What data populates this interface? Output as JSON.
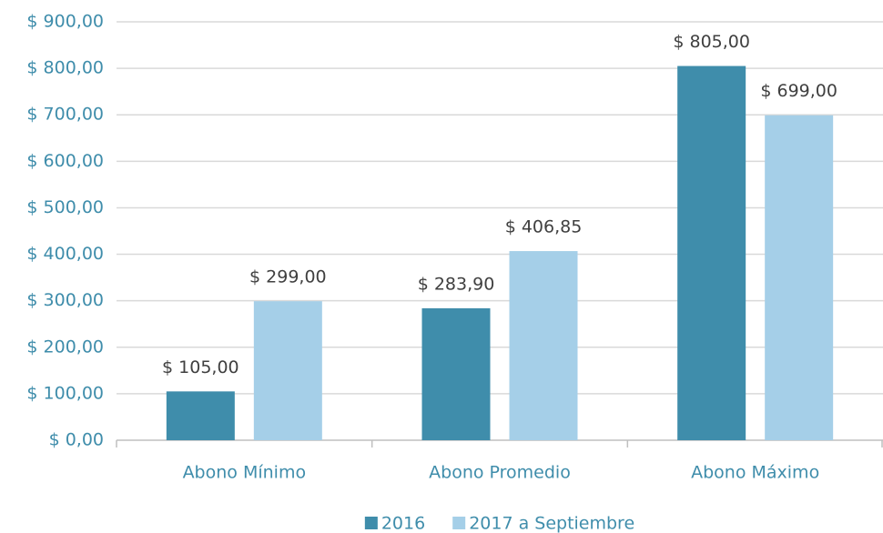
{
  "chart_data": {
    "type": "bar",
    "categories": [
      "Abono Mínimo",
      "Abono Promedio",
      "Abono Máximo"
    ],
    "series": [
      {
        "name": "2016",
        "color": "#3f8dab",
        "values": [
          105,
          283.9,
          805
        ],
        "value_labels": [
          "$ 105,00",
          "$ 283,90",
          "$ 805,00"
        ]
      },
      {
        "name": "2017 a Septiembre",
        "color": "#a5cfe8",
        "values": [
          299,
          406.85,
          699
        ],
        "value_labels": [
          "$ 299,00",
          "$ 406,85",
          "$ 699,00"
        ]
      }
    ],
    "ylim": [
      0,
      900
    ],
    "yticks": [
      {
        "value": 0,
        "label": "$ 0,00"
      },
      {
        "value": 100,
        "label": "$ 100,00"
      },
      {
        "value": 200,
        "label": "$ 200,00"
      },
      {
        "value": 300,
        "label": "$ 300,00"
      },
      {
        "value": 400,
        "label": "$ 400,00"
      },
      {
        "value": 500,
        "label": "$ 500,00"
      },
      {
        "value": 600,
        "label": "$ 600,00"
      },
      {
        "value": 700,
        "label": "$ 700,00"
      },
      {
        "value": 800,
        "label": "$ 800,00"
      },
      {
        "value": 900,
        "label": "$ 900,00"
      }
    ],
    "grid": true,
    "legend": "bottom"
  }
}
